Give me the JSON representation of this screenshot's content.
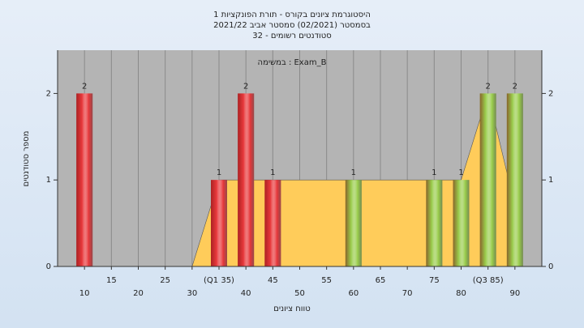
{
  "chart_data": {
    "type": "bar",
    "title": "היסטוגרמת ציונים בקורס - תורת הפונקציות 1",
    "subtitle": "בסמסטר  (02/2021)  סמסטר אביב 2021/22",
    "subtitle2": "סטודנטים רשומים - 32",
    "annotation": "במשימה : Exam_B",
    "y_label": "מספר סטודנטים",
    "x_label": "טווח ציונים",
    "x": [
      10,
      35,
      40,
      45,
      60,
      75,
      80,
      85,
      90
    ],
    "values": [
      2,
      1,
      2,
      1,
      1,
      1,
      1,
      2,
      2
    ],
    "colors": [
      "#e8383b",
      "#e8383b",
      "#e8383b",
      "#e8383b",
      "#9acd4c",
      "#9acd4c",
      "#9acd4c",
      "#9acd4c",
      "#9acd4c"
    ],
    "overlay": {
      "x": [
        30,
        35,
        80,
        85,
        90
      ],
      "values": [
        0,
        1,
        1,
        2,
        0.7
      ],
      "color": "#ffcc5a"
    },
    "xlim": [
      5,
      95
    ],
    "ylim": [
      0,
      2.5
    ],
    "xticks": [
      10,
      15,
      20,
      25,
      30,
      {
        "value": 35,
        "label": "(Q1 35)"
      },
      40,
      45,
      50,
      55,
      60,
      65,
      70,
      75,
      80,
      {
        "value": 85,
        "label": "(Q3 85)"
      },
      90
    ],
    "yticks": [
      0,
      1,
      2
    ],
    "grid": true
  }
}
